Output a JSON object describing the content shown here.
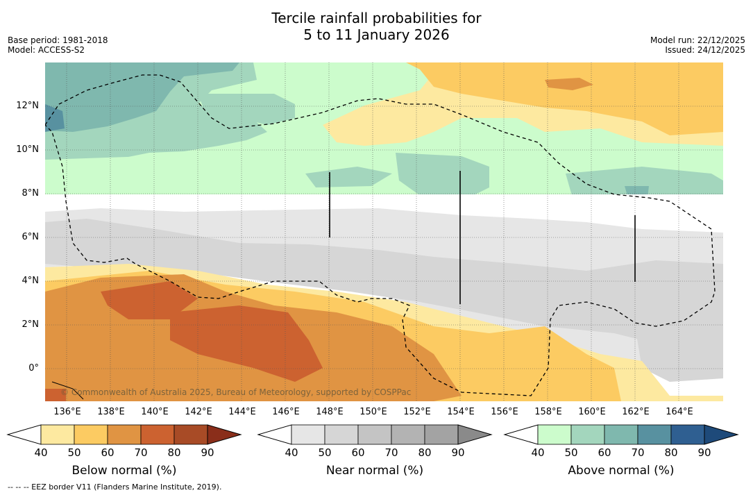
{
  "title": {
    "line1": "Tercile rainfall probabilities for",
    "line2": "5 to 11 January 2026"
  },
  "meta_left": {
    "base_period": "Base period: 1981-2018",
    "model": "Model: ACCESS-S2"
  },
  "meta_right": {
    "model_run": "Model run: 22/12/2025",
    "issued": "Issued: 24/12/2025"
  },
  "map": {
    "lat_labels": [
      "12°N",
      "10°N",
      "8°N",
      "6°N",
      "4°N",
      "2°N",
      "0°"
    ],
    "lon_labels": [
      "136°E",
      "138°E",
      "140°E",
      "142°E",
      "144°E",
      "146°E",
      "148°E",
      "150°E",
      "152°E",
      "154°E",
      "156°E",
      "158°E",
      "160°E",
      "162°E",
      "164°E"
    ],
    "copyright": "© Commonwealth of Australia 2025, Bureau of Meteorology, supported by COSPPac"
  },
  "colorbars": [
    {
      "title": "Below normal (%)",
      "ticks": [
        "40",
        "50",
        "60",
        "70",
        "80",
        "90"
      ],
      "colors": [
        "#ffffff",
        "#fde9a0",
        "#fccb62",
        "#e09443",
        "#cc6230",
        "#a84b26",
        "#8a2e1a"
      ]
    },
    {
      "title": "Near normal (%)",
      "ticks": [
        "40",
        "50",
        "60",
        "70",
        "80",
        "90"
      ],
      "colors": [
        "#ffffff",
        "#e6e6e6",
        "#d6d6d6",
        "#c4c4c4",
        "#b3b3b3",
        "#a3a3a3",
        "#8a8a8a"
      ]
    },
    {
      "title": "Above normal (%)",
      "ticks": [
        "40",
        "50",
        "60",
        "70",
        "80",
        "90"
      ],
      "colors": [
        "#ffffff",
        "#ccfccc",
        "#a3d6bd",
        "#7fb8ae",
        "#5891a0",
        "#2f5f91",
        "#1e4a7a"
      ]
    }
  ],
  "footnote": "--  --  -- EEZ border V11 (Flanders Marine Institute, 2019).",
  "colors": {
    "below_50": "#fde9a0",
    "below_60": "#fccb62",
    "below_70": "#e09443",
    "below_80": "#cc6230",
    "near_40": "#e6e6e6",
    "near_50": "#d6d6d6",
    "above_50": "#ccfccc",
    "above_60": "#a3d6bd",
    "above_70": "#7fb8ae",
    "above_80": "#5891a0"
  }
}
